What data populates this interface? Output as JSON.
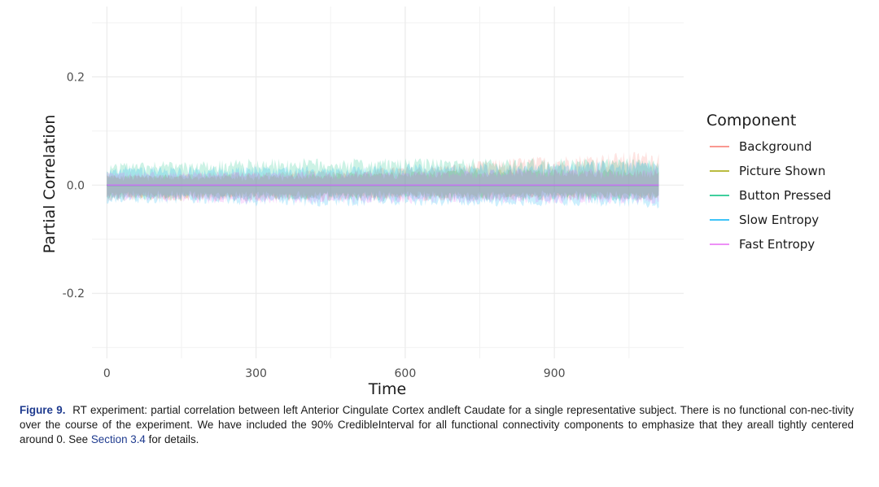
{
  "chart_data": {
    "type": "line",
    "xlabel": "Time",
    "ylabel": "Partial Correlation",
    "xlim": [
      -30,
      1160
    ],
    "ylim": [
      -0.32,
      0.33
    ],
    "x_ticks": [
      0,
      300,
      600,
      900
    ],
    "x_tick_labels": [
      "0",
      "300",
      "600",
      "900"
    ],
    "y_ticks": [
      -0.2,
      0.0,
      0.2
    ],
    "y_tick_labels": [
      "-0.2",
      "0.0",
      "0.2"
    ],
    "grid": true,
    "legend": {
      "title": "Component",
      "position": "right",
      "entries": [
        "Background",
        "Picture Shown",
        "Button Pressed",
        "Slow Entropy",
        "Fast Entropy"
      ]
    },
    "series": [
      {
        "name": "Background",
        "color": "#F8766D",
        "x": [
          0,
          100,
          200,
          300,
          400,
          500,
          600,
          700,
          800,
          900,
          1000,
          1110
        ],
        "values": [
          0.0,
          0.0,
          0.0,
          0.0,
          0.0,
          0.0,
          0.0,
          0.0,
          0.0,
          0.0,
          0.0,
          0.0
        ],
        "lower": [
          -0.03,
          -0.03,
          -0.03,
          -0.03,
          -0.03,
          -0.03,
          -0.03,
          -0.03,
          -0.03,
          -0.03,
          -0.03,
          -0.03
        ],
        "upper": [
          0.02,
          0.02,
          0.025,
          0.025,
          0.028,
          0.03,
          0.035,
          0.04,
          0.05,
          0.055,
          0.06,
          0.065
        ]
      },
      {
        "name": "Picture Shown",
        "color": "#A3A500",
        "x": [
          0,
          100,
          200,
          300,
          400,
          500,
          600,
          700,
          800,
          900,
          1000,
          1110
        ],
        "values": [
          0.0,
          0.0,
          0.0,
          0.0,
          0.0,
          0.0,
          0.0,
          0.0,
          0.0,
          0.0,
          0.0,
          0.0
        ],
        "lower": [
          -0.025,
          -0.025,
          -0.025,
          -0.025,
          -0.025,
          -0.025,
          -0.025,
          -0.025,
          -0.025,
          -0.025,
          -0.025,
          -0.025
        ],
        "upper": [
          0.02,
          0.02,
          0.02,
          0.02,
          0.02,
          0.025,
          0.025,
          0.03,
          0.03,
          0.03,
          0.03,
          0.03
        ]
      },
      {
        "name": "Button Pressed",
        "color": "#00BF7D",
        "x": [
          0,
          100,
          200,
          300,
          400,
          500,
          600,
          700,
          800,
          900,
          1000,
          1110
        ],
        "values": [
          0.0,
          0.0,
          0.0,
          0.0,
          0.0,
          0.0,
          0.0,
          0.0,
          0.0,
          0.0,
          0.0,
          0.0
        ],
        "lower": [
          -0.03,
          -0.03,
          -0.03,
          -0.03,
          -0.03,
          -0.03,
          -0.03,
          -0.03,
          -0.03,
          -0.03,
          -0.03,
          -0.03
        ],
        "upper": [
          0.04,
          0.045,
          0.045,
          0.05,
          0.05,
          0.05,
          0.05,
          0.05,
          0.05,
          0.05,
          0.05,
          0.05
        ]
      },
      {
        "name": "Slow Entropy",
        "color": "#00B0F6",
        "x": [
          0,
          100,
          200,
          300,
          400,
          500,
          600,
          700,
          800,
          900,
          1000,
          1110
        ],
        "values": [
          0.0,
          0.0,
          0.0,
          0.0,
          0.0,
          0.0,
          0.0,
          0.0,
          0.0,
          0.0,
          0.0,
          0.0
        ],
        "lower": [
          -0.035,
          -0.035,
          -0.035,
          -0.04,
          -0.04,
          -0.04,
          -0.04,
          -0.04,
          -0.04,
          -0.04,
          -0.04,
          -0.045
        ],
        "upper": [
          0.035,
          0.035,
          0.035,
          0.035,
          0.035,
          0.035,
          0.04,
          0.04,
          0.04,
          0.04,
          0.045,
          0.045
        ]
      },
      {
        "name": "Fast Entropy",
        "color": "#E76BF3",
        "x": [
          0,
          100,
          200,
          300,
          400,
          500,
          600,
          700,
          800,
          900,
          1000,
          1110
        ],
        "values": [
          0.0,
          0.0,
          0.0,
          0.0,
          0.0,
          0.0,
          0.0,
          0.0,
          0.0,
          0.0,
          0.0,
          0.0
        ],
        "lower": [
          -0.03,
          -0.03,
          -0.035,
          -0.035,
          -0.035,
          -0.035,
          -0.035,
          -0.035,
          -0.035,
          -0.035,
          -0.035,
          -0.035
        ],
        "upper": [
          0.025,
          0.025,
          0.025,
          0.025,
          0.025,
          0.025,
          0.025,
          0.025,
          0.03,
          0.03,
          0.03,
          0.03
        ]
      }
    ]
  },
  "caption": {
    "label": "Figure 9.",
    "text_before_link": "RT experiment: partial correlation between left Anterior Cingulate Cortex andleft Caudate for a single representative subject. There is no functional con-nec-tivity over the course of the experiment. We have included the 90% CredibleInterval for all functional connectivity components to emphasize that they areall tightly centered around 0. See",
    "link_text": "Section 3.4",
    "text_after_link": "for details."
  }
}
